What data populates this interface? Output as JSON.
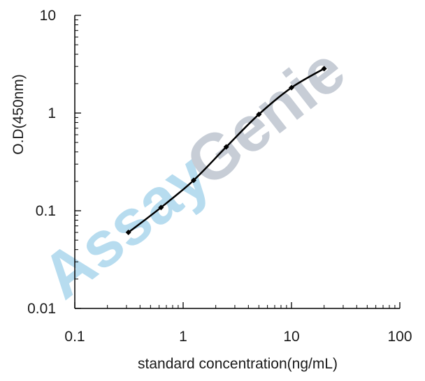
{
  "watermark": {
    "part1": "Assay",
    "part2": "Genie",
    "color1": "#b7dcef",
    "color2": "#c7cdd6"
  },
  "chart_data": {
    "type": "line",
    "title": "",
    "xlabel": "standard concentration(ng/mL)",
    "ylabel": "O.D(450nm)",
    "xscale": "log",
    "yscale": "log",
    "xlim": [
      0.1,
      100
    ],
    "ylim": [
      0.01,
      10
    ],
    "x_ticks": [
      "0.1",
      "1",
      "10",
      "100"
    ],
    "y_ticks": [
      "0.01",
      "0.1",
      "1",
      "10"
    ],
    "grid": false,
    "legend": "none",
    "line_color": "#000000",
    "series": [
      {
        "x": [
          0.3125,
          0.625,
          1.25,
          2.5,
          5,
          10,
          20
        ],
        "y": [
          0.06,
          0.108,
          0.205,
          0.45,
          0.97,
          1.82,
          2.85
        ]
      }
    ]
  }
}
